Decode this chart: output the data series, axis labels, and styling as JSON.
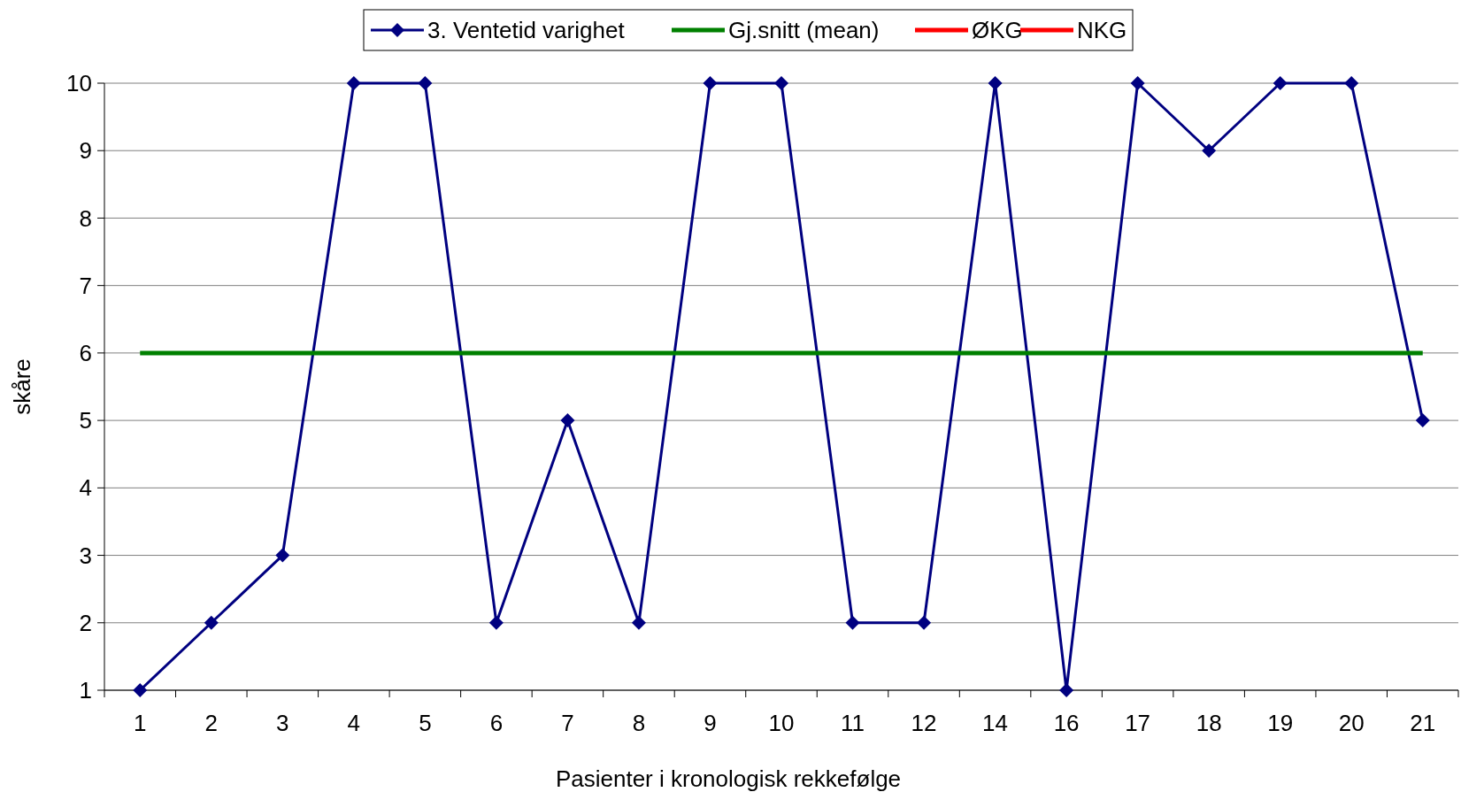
{
  "chart_data": {
    "type": "line",
    "xlabel": "Pasienter i kronologisk rekkefølge",
    "ylabel": "skåre",
    "categories": [
      "1",
      "2",
      "3",
      "4",
      "5",
      "6",
      "7",
      "8",
      "9",
      "10",
      "11",
      "12",
      "14",
      "16",
      "17",
      "18",
      "19",
      "20",
      "21"
    ],
    "series": [
      {
        "name": "3. Ventetid varighet",
        "color": "#000080",
        "marker": "diamond",
        "values": [
          1,
          2,
          3,
          10,
          10,
          2,
          5,
          2,
          10,
          10,
          2,
          2,
          10,
          1,
          10,
          9,
          10,
          10,
          5
        ]
      },
      {
        "name": "Gj.snitt (mean)",
        "color": "#008000",
        "marker": "none",
        "values": [
          6,
          6,
          6,
          6,
          6,
          6,
          6,
          6,
          6,
          6,
          6,
          6,
          6,
          6,
          6,
          6,
          6,
          6,
          6
        ]
      },
      {
        "name": "ØKG",
        "color": "#ff0000",
        "marker": "none",
        "values": [
          null,
          null,
          null,
          null,
          null,
          null,
          null,
          null,
          null,
          null,
          null,
          null,
          null,
          null,
          null,
          null,
          null,
          null,
          null
        ]
      },
      {
        "name": "NKG",
        "color": "#ff0000",
        "marker": "none",
        "values": [
          null,
          null,
          null,
          null,
          null,
          null,
          null,
          null,
          null,
          null,
          null,
          null,
          null,
          null,
          null,
          null,
          null,
          null,
          null
        ]
      }
    ],
    "ylim": [
      1,
      10
    ],
    "yticks": [
      1,
      2,
      3,
      4,
      5,
      6,
      7,
      8,
      9,
      10
    ],
    "grid": "y",
    "legend": "top"
  }
}
